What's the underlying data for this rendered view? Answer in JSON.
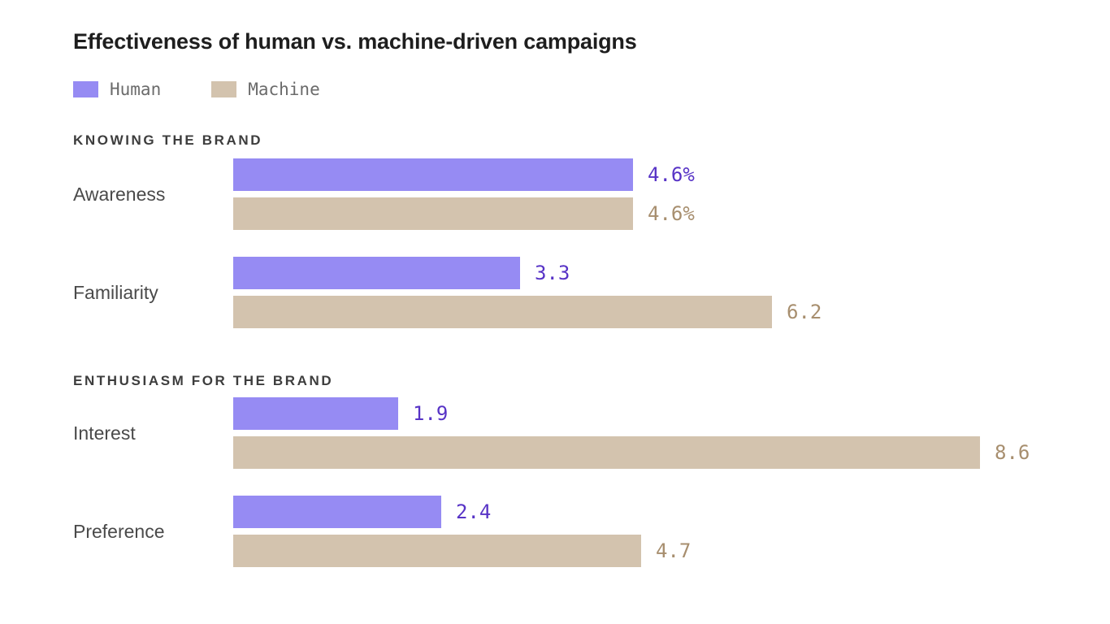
{
  "title": "Effectiveness of human vs. machine-driven campaigns",
  "legend": {
    "items": [
      {
        "label": "Human",
        "color": "#968bf3"
      },
      {
        "label": "Machine",
        "color": "#d3c3ae"
      }
    ]
  },
  "chart_data": {
    "type": "bar",
    "orientation": "horizontal",
    "title": "Effectiveness of human vs. machine-driven campaigns",
    "series_names": [
      "Human",
      "Machine"
    ],
    "colors": {
      "human_bar": "#968bf3",
      "machine_bar": "#d3c3ae",
      "human_value_text": "#5733c6",
      "machine_value_text": "#a78e6e"
    },
    "x_max": 8.6,
    "grid": false,
    "legend_position": "top-left",
    "sections": [
      {
        "header": "KNOWING THE BRAND",
        "rows": [
          {
            "category": "Awareness",
            "values": {
              "human": 4.6,
              "machine": 4.6
            },
            "value_labels": {
              "human": "4.6%",
              "machine": "4.6%"
            }
          },
          {
            "category": "Familiarity",
            "values": {
              "human": 3.3,
              "machine": 6.2
            },
            "value_labels": {
              "human": "3.3",
              "machine": "6.2"
            }
          }
        ]
      },
      {
        "header": "ENTHUSIASM FOR THE BRAND",
        "rows": [
          {
            "category": "Interest",
            "values": {
              "human": 1.9,
              "machine": 8.6
            },
            "value_labels": {
              "human": "1.9",
              "machine": "8.6"
            }
          },
          {
            "category": "Preference",
            "values": {
              "human": 2.4,
              "machine": 4.7
            },
            "value_labels": {
              "human": "2.4",
              "machine": "4.7"
            }
          }
        ]
      }
    ]
  }
}
